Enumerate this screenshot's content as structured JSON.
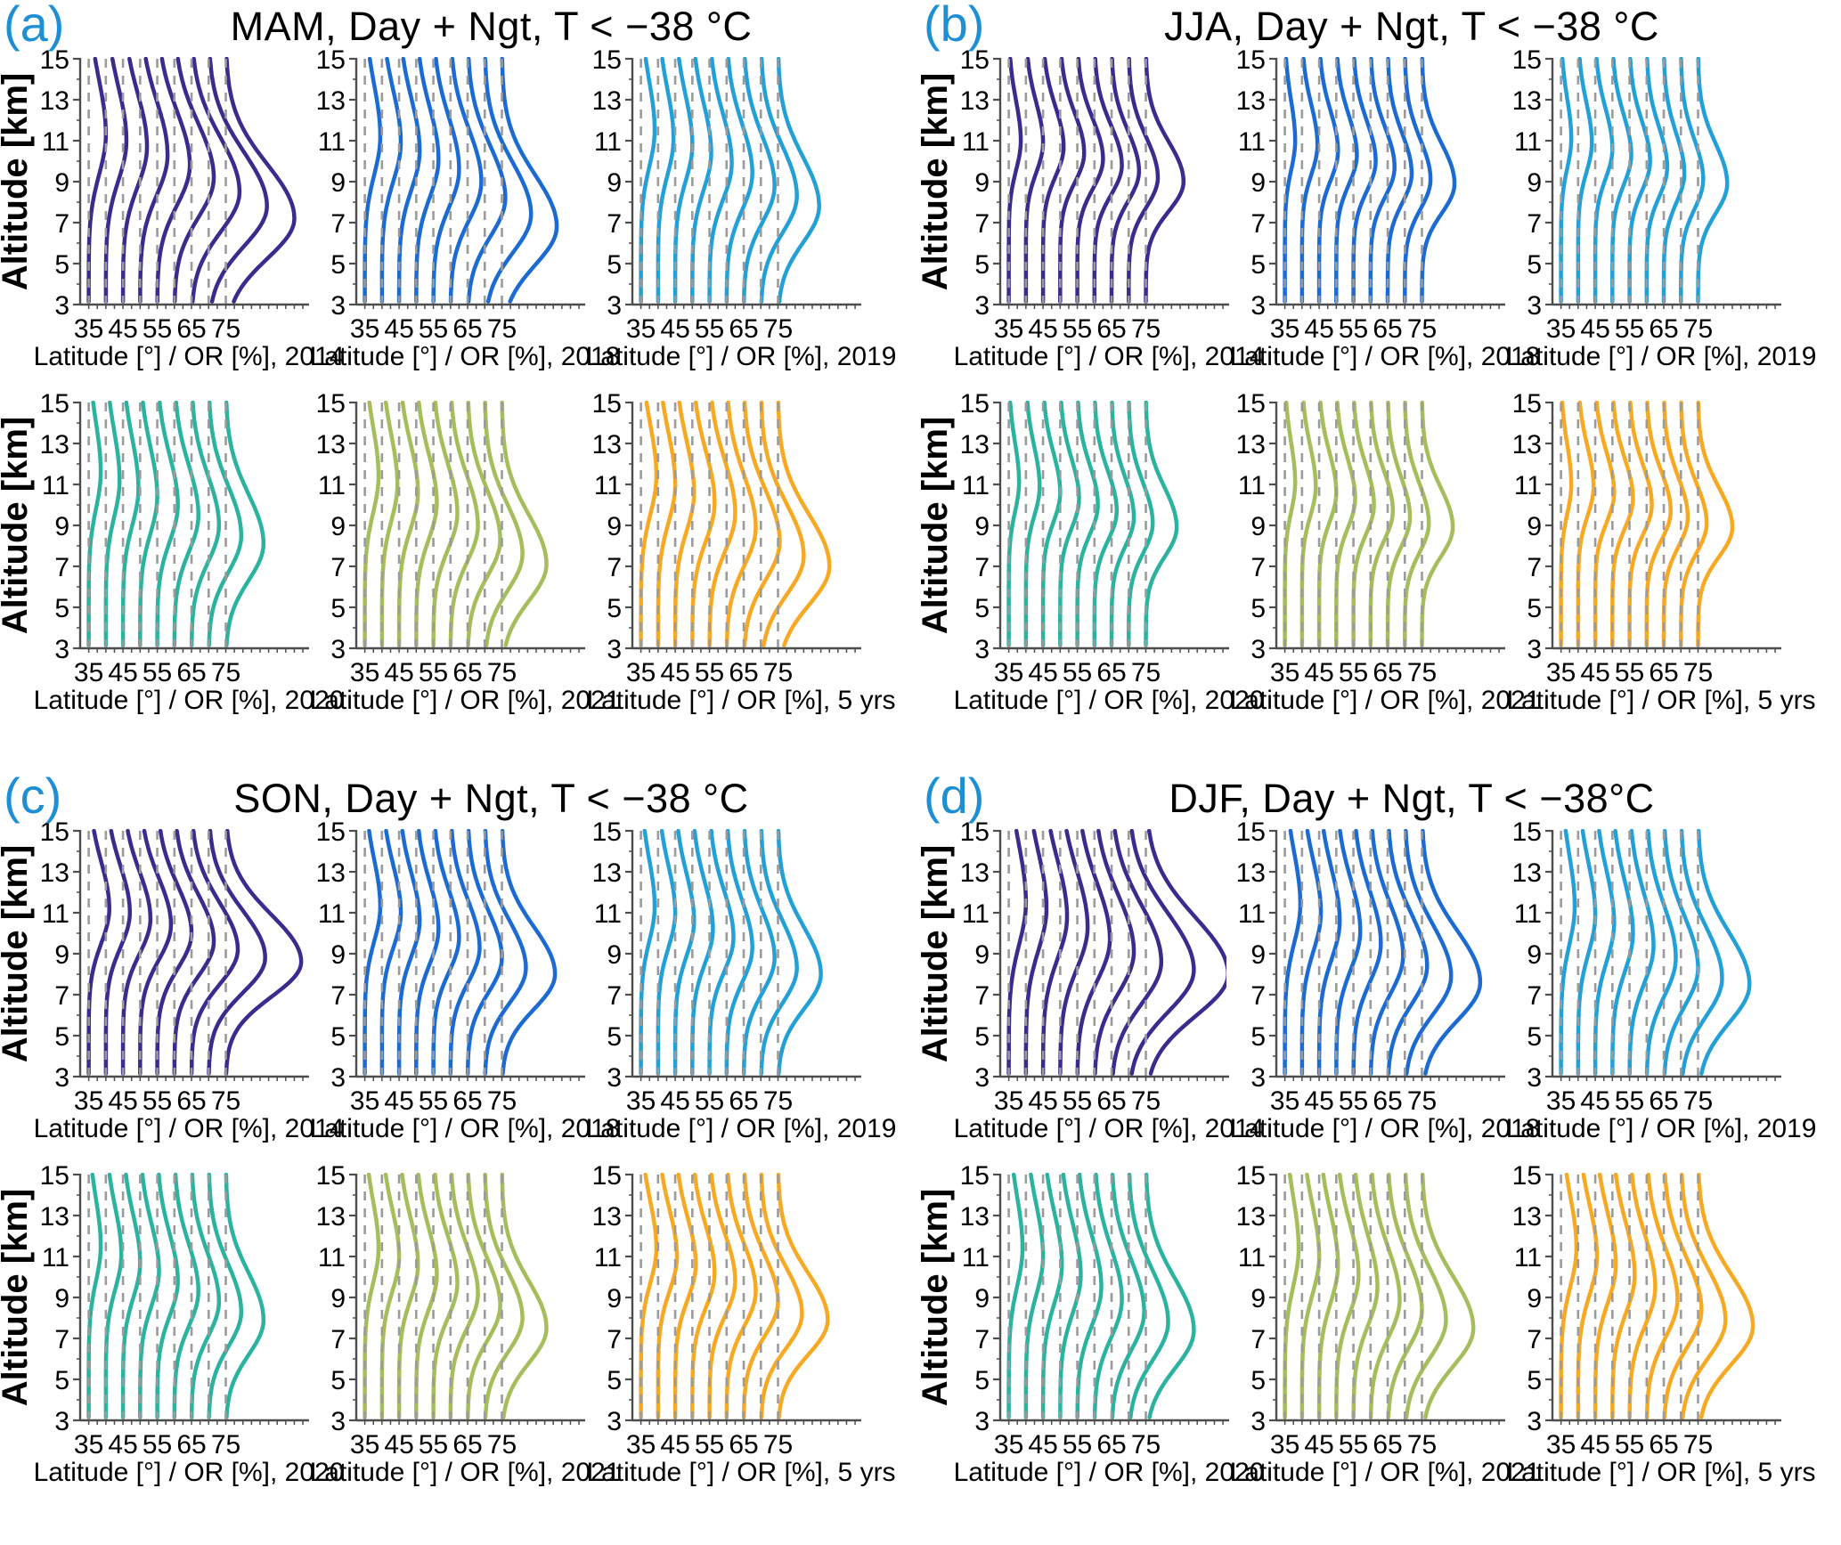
{
  "style": {
    "panel_letter_color": "#1E8FD4",
    "dash_color": "#9B9B9B",
    "axis_color": "#4D4D4D",
    "text_color": "#000000",
    "background": "#FFFFFF"
  },
  "chart_data": {
    "type": "line",
    "description": "Seasonal cirrus occurrence-rate (OR) altitude profiles. Each subplot shows 9 profile curves anchored at latitude bins; the rightward offset of each curve from its dashed anchor line gives OR [%] on the shared x axis.",
    "ylabel": "Altitude [km]",
    "ylim": [
      3,
      15
    ],
    "yticks": [
      3,
      5,
      7,
      9,
      11,
      13,
      15
    ],
    "xlim": [
      32.5,
      98
    ],
    "xticks": [
      35,
      45,
      55,
      65,
      75
    ],
    "x_minor_step": 2.5,
    "grid": "dashed vertical reference line at every latitude anchor",
    "legend_position": "none (year given in each x-axis label)",
    "latitudes": [
      35,
      40,
      45,
      50,
      55,
      60,
      65,
      70,
      75
    ],
    "year_colors": {
      "2014": "#3A2C8E",
      "2018": "#1C6BD2",
      "2019": "#23A0D8",
      "2020": "#2BB3A0",
      "2021": "#A6BD5B",
      "5 yrs": "#F8A924"
    },
    "panels": [
      {
        "id": "a",
        "letter": "(a)",
        "title": "MAM, Day + Ngt, T < −38 °C",
        "subplots": [
          {
            "year": "2014",
            "color": "#3A2C8E",
            "xlabel": "Latitude [°] / OR [%], 2014",
            "width": 2.3,
            "peaks": [
              11.3,
              11.0,
              10.7,
              10.3,
              9.8,
              9.2,
              8.5,
              7.8,
              7.2
            ],
            "amps": [
              5,
              6,
              7,
              8,
              9.5,
              11.5,
              14,
              17,
              20
            ]
          },
          {
            "year": "2018",
            "color": "#1C6BD2",
            "xlabel": "Latitude [°] / OR [%], 2018",
            "width": 2.2,
            "peaks": [
              11.2,
              10.9,
              10.5,
              10.1,
              9.6,
              9.0,
              8.2,
              7.4,
              6.8
            ],
            "amps": [
              4.5,
              5.5,
              6,
              6.5,
              7.5,
              9,
              11,
              13.5,
              16
            ]
          },
          {
            "year": "2019",
            "color": "#23A0D8",
            "xlabel": "Latitude [°] / OR [%], 2019",
            "width": 2.1,
            "peaks": [
              11.5,
              11.1,
              10.8,
              10.4,
              9.9,
              9.4,
              8.8,
              8.3,
              7.8
            ],
            "amps": [
              4,
              4.5,
              5,
              5.5,
              6.5,
              7.5,
              9,
              10.5,
              12
            ]
          },
          {
            "year": "2020",
            "color": "#2BB3A0",
            "xlabel": "Latitude [°] / OR [%], 2020",
            "width": 2.1,
            "peaks": [
              11.6,
              11.2,
              10.8,
              10.4,
              10.0,
              9.5,
              9.0,
              8.5,
              8.1
            ],
            "amps": [
              3.5,
              4,
              4.5,
              5,
              6,
              7,
              8,
              9.5,
              11
            ]
          },
          {
            "year": "2021",
            "color": "#A6BD5B",
            "xlabel": "Latitude [°] / OR [%], 2021",
            "width": 2.1,
            "peaks": [
              11.4,
              11.0,
              10.6,
              10.1,
              9.6,
              9.0,
              8.3,
              7.6,
              7.1
            ],
            "amps": [
              4,
              4.5,
              5.5,
              6,
              7,
              8,
              9.5,
              11,
              13
            ]
          },
          {
            "year": "5 yrs",
            "color": "#F8A924",
            "xlabel": "Latitude [°] / OR [%], 5 yrs",
            "width": 2.2,
            "peaks": [
              11.4,
              11.0,
              10.6,
              10.1,
              9.6,
              8.9,
              8.2,
              7.5,
              7.0
            ],
            "amps": [
              4.5,
              5,
              5.5,
              6.5,
              7.5,
              8.5,
              10.5,
              12.5,
              15
            ]
          }
        ]
      },
      {
        "id": "b",
        "letter": "(b)",
        "title": "JJA, Day + Ngt, T < −38 °C",
        "subplots": [
          {
            "year": "2014",
            "color": "#3A2C8E",
            "xlabel": "Latitude [°] / OR [%], 2014",
            "width": 1.7,
            "peaks": [
              11.0,
              10.9,
              10.7,
              10.4,
              10.1,
              9.8,
              9.5,
              9.2,
              9.0
            ],
            "amps": [
              3.5,
              5,
              6,
              7,
              7.5,
              8,
              8,
              8.5,
              11
            ]
          },
          {
            "year": "2018",
            "color": "#1C6BD2",
            "xlabel": "Latitude [°] / OR [%], 2018",
            "width": 1.7,
            "peaks": [
              11.0,
              10.8,
              10.5,
              10.3,
              10.0,
              9.7,
              9.4,
              9.1,
              8.9
            ],
            "amps": [
              3,
              4.5,
              5.5,
              6,
              6.5,
              7,
              7,
              7.5,
              9.5
            ]
          },
          {
            "year": "2019",
            "color": "#23A0D8",
            "xlabel": "Latitude [°] / OR [%], 2019",
            "width": 1.7,
            "peaks": [
              11.1,
              10.9,
              10.6,
              10.3,
              10.0,
              9.7,
              9.4,
              9.1,
              8.9
            ],
            "amps": [
              3,
              4,
              5,
              5.5,
              6,
              6,
              6,
              6.5,
              8.5
            ]
          },
          {
            "year": "2020",
            "color": "#2BB3A0",
            "xlabel": "Latitude [°] / OR [%], 2020",
            "width": 1.7,
            "peaks": [
              11.1,
              10.9,
              10.6,
              10.3,
              10.0,
              9.7,
              9.4,
              9.1,
              8.9
            ],
            "amps": [
              3,
              4,
              5,
              5.5,
              6,
              6.5,
              6.5,
              7,
              9
            ]
          },
          {
            "year": "2021",
            "color": "#A6BD5B",
            "xlabel": "Latitude [°] / OR [%], 2021",
            "width": 1.7,
            "peaks": [
              11.1,
              10.9,
              10.6,
              10.3,
              10.0,
              9.7,
              9.4,
              9.1,
              8.9
            ],
            "amps": [
              3,
              4,
              5,
              5.5,
              6,
              6.5,
              6.5,
              7,
              9
            ]
          },
          {
            "year": "5 yrs",
            "color": "#F8A924",
            "xlabel": "Latitude [°] / OR [%], 5 yrs",
            "width": 1.7,
            "peaks": [
              11.0,
              10.9,
              10.6,
              10.3,
              10.0,
              9.7,
              9.4,
              9.1,
              8.9
            ],
            "amps": [
              3,
              4.5,
              5.5,
              6,
              6.5,
              7,
              7,
              7.5,
              10
            ]
          }
        ]
      },
      {
        "id": "c",
        "letter": "(c)",
        "title": "SON, Day + Ngt, T < −38 °C",
        "subplots": [
          {
            "year": "2014",
            "color": "#3A2C8E",
            "xlabel": "Latitude [°] / OR [%], 2014",
            "width": 2.0,
            "peaks": [
              11.2,
              11.0,
              10.7,
              10.4,
              10.0,
              9.6,
              9.2,
              8.8,
              8.6
            ],
            "amps": [
              6,
              7,
              8,
              9,
              10,
              11.5,
              13.5,
              16.5,
              22
            ]
          },
          {
            "year": "2018",
            "color": "#1C6BD2",
            "xlabel": "Latitude [°] / OR [%], 2018",
            "width": 2.0,
            "peaks": [
              11.3,
              11.0,
              10.6,
              10.2,
              9.8,
              9.3,
              8.8,
              8.3,
              8.0
            ],
            "amps": [
              4.5,
              5.5,
              6,
              6.5,
              7.5,
              8.5,
              10,
              12,
              15.5
            ]
          },
          {
            "year": "2019",
            "color": "#23A0D8",
            "xlabel": "Latitude [°] / OR [%], 2019",
            "width": 2.0,
            "peaks": [
              11.3,
              11.0,
              10.6,
              10.2,
              9.8,
              9.3,
              8.8,
              8.3,
              8.0
            ],
            "amps": [
              4,
              5,
              5.5,
              6,
              7,
              7.5,
              9,
              10.5,
              12.5
            ]
          },
          {
            "year": "2020",
            "color": "#2BB3A0",
            "xlabel": "Latitude [°] / OR [%], 2020",
            "width": 2.0,
            "peaks": [
              11.5,
              11.1,
              10.7,
              10.3,
              9.8,
              9.3,
              8.8,
              8.3,
              7.9
            ],
            "amps": [
              3.5,
              4.5,
              5,
              5.5,
              6,
              7,
              8,
              9.5,
              11
            ]
          },
          {
            "year": "2021",
            "color": "#A6BD5B",
            "xlabel": "Latitude [°] / OR [%], 2021",
            "width": 2.0,
            "peaks": [
              11.4,
              11.0,
              10.6,
              10.1,
              9.7,
              9.2,
              8.6,
              8.0,
              7.5
            ],
            "amps": [
              4,
              5,
              5.5,
              6,
              7,
              8,
              9.5,
              11,
              13
            ]
          },
          {
            "year": "5 yrs",
            "color": "#F8A924",
            "xlabel": "Latitude [°] / OR [%], 5 yrs",
            "width": 2.0,
            "peaks": [
              11.4,
              11.0,
              10.6,
              10.2,
              9.8,
              9.3,
              8.8,
              8.2,
              7.9
            ],
            "amps": [
              4.5,
              5.5,
              6,
              6.5,
              7.5,
              8.5,
              10,
              12,
              14.5
            ]
          }
        ]
      },
      {
        "id": "d",
        "letter": "(d)",
        "title": "DJF, Day + Ngt, T < −38°C",
        "subplots": [
          {
            "year": "2014",
            "color": "#3A2C8E",
            "xlabel": "Latitude [°] / OR [%], 2014",
            "width": 2.4,
            "peaks": [
              11.5,
              11.2,
              10.8,
              10.3,
              9.7,
              9.1,
              8.6,
              8.2,
              8.0
            ],
            "amps": [
              5,
              6,
              7,
              8,
              9.5,
              11.5,
              14.5,
              19,
              24
            ]
          },
          {
            "year": "2018",
            "color": "#1C6BD2",
            "xlabel": "Latitude [°] / OR [%], 2018",
            "width": 2.2,
            "peaks": [
              11.4,
              11.0,
              10.6,
              10.1,
              9.5,
              8.9,
              8.4,
              7.9,
              7.6
            ],
            "amps": [
              4.5,
              5.5,
              6,
              7,
              8,
              9.5,
              11.5,
              13.5,
              17
            ]
          },
          {
            "year": "2019",
            "color": "#23A0D8",
            "xlabel": "Latitude [°] / OR [%], 2019",
            "width": 2.2,
            "peaks": [
              11.3,
              10.9,
              10.5,
              10.0,
              9.4,
              8.8,
              8.3,
              7.8,
              7.5
            ],
            "amps": [
              4,
              5,
              5.5,
              6,
              7,
              8.5,
              10,
              12,
              15
            ]
          },
          {
            "year": "2020",
            "color": "#2BB3A0",
            "xlabel": "Latitude [°] / OR [%], 2020",
            "width": 2.2,
            "peaks": [
              11.4,
              11.0,
              10.6,
              10.1,
              9.5,
              8.9,
              8.3,
              7.8,
              7.4
            ],
            "amps": [
              4,
              5,
              5.5,
              6,
              7,
              8,
              9.5,
              11.5,
              14
            ]
          },
          {
            "year": "2021",
            "color": "#A6BD5B",
            "xlabel": "Latitude [°] / OR [%], 2021",
            "width": 2.2,
            "peaks": [
              11.4,
              11.0,
              10.6,
              10.1,
              9.5,
              8.9,
              8.4,
              7.9,
              7.5
            ],
            "amps": [
              4,
              5,
              5.5,
              6.5,
              7,
              8.5,
              10,
              12,
              15
            ]
          },
          {
            "year": "5 yrs",
            "color": "#F8A924",
            "xlabel": "Latitude [°] / OR [%], 5 yrs",
            "width": 2.2,
            "peaks": [
              11.4,
              11.0,
              10.6,
              10.1,
              9.5,
              8.9,
              8.4,
              7.9,
              7.6
            ],
            "amps": [
              4.5,
              5.5,
              6,
              6.5,
              7.5,
              9,
              11,
              13,
              16
            ]
          }
        ]
      }
    ]
  }
}
